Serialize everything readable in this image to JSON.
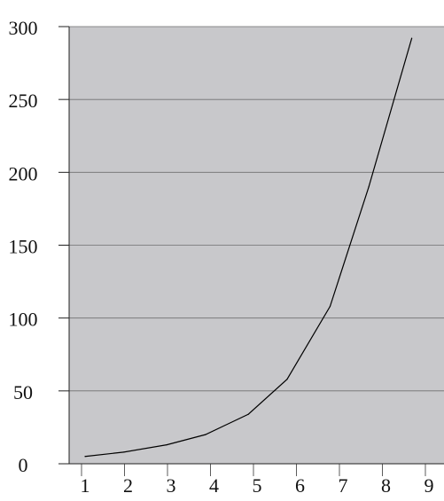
{
  "chart_data": {
    "type": "line",
    "title": "",
    "xlabel": "",
    "ylabel": "",
    "x_ticks": [
      "1",
      "2",
      "3",
      "4",
      "5",
      "6",
      "7",
      "8",
      "9"
    ],
    "y_ticks": [
      "0",
      "50",
      "100",
      "150",
      "200",
      "250",
      "300"
    ],
    "xlim": [
      1,
      9
    ],
    "ylim": [
      0,
      300
    ],
    "grid": "horizontal",
    "plot_background": "#c8c8cb",
    "line_color": "#000000",
    "series": [
      {
        "x": [
          1.0,
          1.9,
          2.9,
          3.8,
          4.8,
          5.7,
          6.7,
          7.6,
          8.6
        ],
        "values": [
          5,
          8,
          13,
          20,
          34,
          58,
          108,
          190,
          292
        ]
      }
    ]
  }
}
